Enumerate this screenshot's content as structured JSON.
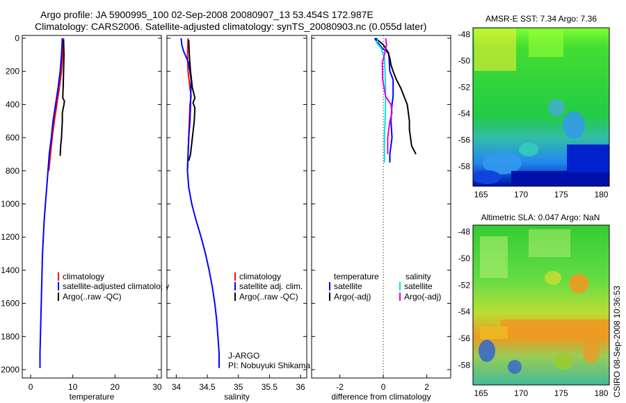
{
  "header": {
    "line1": "Argo profile: JA 5900995_100 02-Sep-2008 20080907_13 53.454S 172.987E",
    "line2": "Climatology: CARS2006. Satellite-adjusted climatology: synTS_20080903.nc (0.055d later)"
  },
  "footer_text": "CSIRO 08-Sep-2008 10:36:53",
  "colors": {
    "climatology": "#ff0000",
    "satellite": "#0000ff",
    "argo": "#000000",
    "sal_satellite": "#00e5e5",
    "sal_argo": "#e000e0"
  },
  "chart_data": [
    {
      "type": "line",
      "name": "temperature",
      "xlabel": "temperature",
      "xlim": [
        -2,
        31
      ],
      "ylim": [
        2050,
        0
      ],
      "xticks": [
        0,
        10,
        20,
        30
      ],
      "yticks": [
        0,
        200,
        400,
        600,
        800,
        1000,
        1200,
        1400,
        1600,
        1800,
        2000
      ],
      "legend": [
        "climatology",
        "satellite-adjusted climatology",
        "Argo(..raw -QC)"
      ],
      "series": [
        {
          "name": "climatology",
          "color": "#ff0000",
          "points": [
            [
              7.8,
              0
            ],
            [
              7.6,
              100
            ],
            [
              7.3,
              200
            ],
            [
              6.8,
              300
            ],
            [
              6.2,
              400
            ],
            [
              5.6,
              500
            ],
            [
              5.1,
              600
            ],
            [
              4.7,
              700
            ],
            [
              4.3,
              800
            ]
          ]
        },
        {
          "name": "satellite-adjusted climatology",
          "color": "#0000ff",
          "points": [
            [
              7.5,
              0
            ],
            [
              7.3,
              100
            ],
            [
              7.0,
              200
            ],
            [
              6.5,
              300
            ],
            [
              5.9,
              400
            ],
            [
              5.3,
              500
            ],
            [
              4.9,
              600
            ],
            [
              4.4,
              700
            ],
            [
              4.1,
              800
            ],
            [
              3.8,
              900
            ],
            [
              3.5,
              1000
            ],
            [
              3.2,
              1100
            ],
            [
              3.0,
              1200
            ],
            [
              2.8,
              1300
            ],
            [
              2.7,
              1400
            ],
            [
              2.6,
              1500
            ],
            [
              2.5,
              1600
            ],
            [
              2.4,
              1700
            ],
            [
              2.3,
              1800
            ],
            [
              2.2,
              1900
            ],
            [
              2.2,
              1990
            ]
          ]
        },
        {
          "name": "Argo(..raw -QC)",
          "color": "#000000",
          "points": [
            [
              7.8,
              10
            ],
            [
              7.9,
              100
            ],
            [
              7.8,
              200
            ],
            [
              7.7,
              300
            ],
            [
              7.6,
              360
            ],
            [
              8.0,
              380
            ],
            [
              7.9,
              400
            ],
            [
              7.5,
              450
            ],
            [
              7.5,
              500
            ],
            [
              7.4,
              550
            ],
            [
              7.3,
              600
            ],
            [
              7.1,
              650
            ],
            [
              7.0,
              710
            ]
          ]
        }
      ]
    },
    {
      "type": "line",
      "name": "salinity",
      "xlabel": "salinity",
      "xlim": [
        33.85,
        36.1
      ],
      "ylim": [
        2050,
        0
      ],
      "xticks": [
        34,
        34.5,
        35,
        35.5,
        36
      ],
      "legend": [
        "climatology",
        "satellite adj. clim.",
        "Argo(..raw -QC)"
      ],
      "annotation": [
        "J-ARGO",
        "PI: Nobuyuki Shikama"
      ],
      "series": [
        {
          "name": "climatology",
          "color": "#ff0000",
          "points": [
            [
              34.19,
              0
            ],
            [
              34.18,
              100
            ],
            [
              34.19,
              200
            ],
            [
              34.22,
              300
            ],
            [
              34.24,
              350
            ],
            [
              34.22,
              400
            ],
            [
              34.21,
              500
            ],
            [
              34.2,
              600
            ],
            [
              34.19,
              700
            ],
            [
              34.18,
              800
            ]
          ]
        },
        {
          "name": "satellite adj. clim.",
          "color": "#0000ff",
          "points": [
            [
              34.08,
              0
            ],
            [
              34.09,
              40
            ],
            [
              34.12,
              80
            ],
            [
              34.2,
              150
            ],
            [
              34.24,
              250
            ],
            [
              34.23,
              400
            ],
            [
              34.22,
              500
            ],
            [
              34.2,
              600
            ],
            [
              34.19,
              700
            ],
            [
              34.18,
              800
            ],
            [
              34.2,
              900
            ],
            [
              34.25,
              1000
            ],
            [
              34.32,
              1100
            ],
            [
              34.4,
              1200
            ],
            [
              34.47,
              1300
            ],
            [
              34.53,
              1400
            ],
            [
              34.58,
              1500
            ],
            [
              34.62,
              1600
            ],
            [
              34.65,
              1700
            ],
            [
              34.67,
              1800
            ],
            [
              34.69,
              1900
            ],
            [
              34.69,
              1990
            ]
          ]
        },
        {
          "name": "Argo(..raw -QC)",
          "color": "#000000",
          "points": [
            [
              34.2,
              10
            ],
            [
              34.21,
              100
            ],
            [
              34.23,
              200
            ],
            [
              34.26,
              300
            ],
            [
              34.3,
              360
            ],
            [
              34.27,
              390
            ],
            [
              34.3,
              420
            ],
            [
              34.29,
              500
            ],
            [
              34.26,
              600
            ],
            [
              34.23,
              700
            ],
            [
              34.2,
              740
            ]
          ]
        }
      ]
    },
    {
      "type": "line",
      "name": "difference",
      "xlabel": "difference from climatology",
      "xlim": [
        -3.3,
        3.1
      ],
      "ylim": [
        2050,
        0
      ],
      "xticks": [
        -2,
        0,
        2
      ],
      "legend_temperature_title": "temperature",
      "legend_salinity_title": "salinity",
      "legend_temperature": [
        "satellite",
        "Argo(-adj)"
      ],
      "legend_salinity": [
        "satellite",
        "Argo(-adj)"
      ],
      "series": [
        {
          "name": "temperature satellite",
          "color": "#0000ff",
          "points": [
            [
              -0.4,
              0
            ],
            [
              -0.3,
              20
            ],
            [
              -0.05,
              60
            ],
            [
              0.25,
              90
            ],
            [
              0.3,
              200
            ],
            [
              0.45,
              250
            ],
            [
              0.45,
              350
            ],
            [
              0.4,
              400
            ],
            [
              0.35,
              500
            ],
            [
              0.4,
              600
            ],
            [
              0.3,
              700
            ],
            [
              0.3,
              750
            ]
          ]
        },
        {
          "name": "temperature Argo(-adj)",
          "color": "#000000",
          "points": [
            [
              -0.35,
              0
            ],
            [
              0.0,
              40
            ],
            [
              0.2,
              80
            ],
            [
              0.3,
              120
            ],
            [
              0.35,
              160
            ],
            [
              0.45,
              200
            ],
            [
              0.6,
              250
            ],
            [
              0.8,
              300
            ],
            [
              0.95,
              350
            ],
            [
              1.1,
              400
            ],
            [
              1.15,
              450
            ],
            [
              1.2,
              500
            ],
            [
              1.2,
              550
            ],
            [
              1.25,
              600
            ],
            [
              1.3,
              650
            ],
            [
              1.5,
              700
            ]
          ]
        },
        {
          "name": "salinity satellite",
          "color": "#00e5e5",
          "points": [
            [
              -0.25,
              0
            ],
            [
              -0.3,
              30
            ],
            [
              -0.1,
              60
            ],
            [
              0.05,
              120
            ],
            [
              0.08,
              200
            ],
            [
              0.1,
              300
            ],
            [
              0.1,
              400
            ],
            [
              0.08,
              500
            ],
            [
              0.05,
              600
            ],
            [
              0.05,
              700
            ],
            [
              0.05,
              750
            ]
          ]
        },
        {
          "name": "salinity Argo(-adj)",
          "color": "#e000e0",
          "points": [
            [
              0.1,
              0
            ],
            [
              0.15,
              40
            ],
            [
              0.05,
              100
            ],
            [
              -0.05,
              150
            ],
            [
              -0.03,
              250
            ],
            [
              0.1,
              350
            ],
            [
              0.35,
              400
            ],
            [
              0.4,
              450
            ],
            [
              0.3,
              500
            ],
            [
              0.2,
              600
            ],
            [
              0.2,
              700
            ]
          ]
        }
      ]
    },
    {
      "type": "heatmap",
      "name": "sst_map",
      "title": "AMSR-E SST: 7.34 Argo: 7.36",
      "xlim": [
        164,
        181
      ],
      "ylim": [
        -59.5,
        -47.5
      ],
      "xticks": [
        165,
        170,
        175,
        180
      ],
      "yticks": [
        -48,
        -50,
        -52,
        -54,
        -56,
        -58
      ],
      "marker": [
        172.987,
        -53.454
      ]
    },
    {
      "type": "heatmap",
      "name": "sla_map",
      "title": "Altimetric SLA: 0.047 Argo: NaN",
      "xlim": [
        164,
        181
      ],
      "ylim": [
        -59.5,
        -47.5
      ],
      "xticks": [
        165,
        170,
        175,
        180
      ],
      "yticks": [
        -48,
        -50,
        -52,
        -54,
        -56,
        -58
      ],
      "marker": [
        172.987,
        -53.454
      ]
    }
  ]
}
